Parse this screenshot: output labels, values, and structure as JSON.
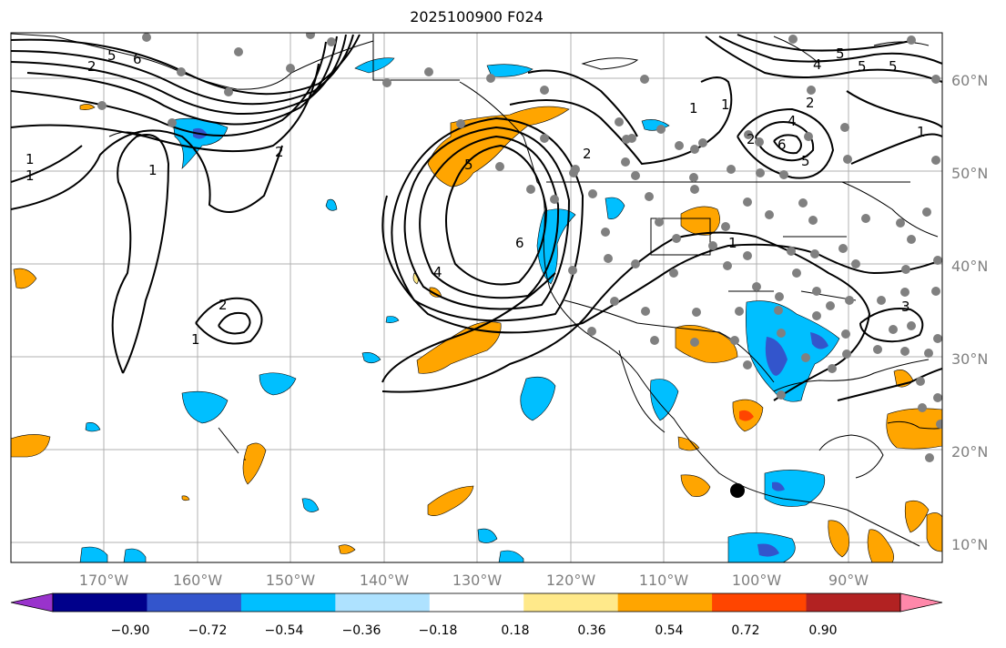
{
  "title": "2025100900 F024",
  "map": {
    "lon_labels": [
      "170°W",
      "160°W",
      "150°W",
      "140°W",
      "130°W",
      "120°W",
      "110°W",
      "100°W",
      "90°W"
    ],
    "lat_labels": [
      "60°N",
      "50°N",
      "40°N",
      "30°N",
      "20°N",
      "10°N"
    ],
    "contour_labels": [
      "5",
      "6",
      "2",
      "1",
      "1",
      "2",
      "1",
      "2",
      "2",
      "1",
      "2",
      "1",
      "1",
      "4",
      "5",
      "6",
      "5",
      "4",
      "5",
      "5",
      "6",
      "4",
      "5",
      "1",
      "3",
      "2",
      "1"
    ],
    "colors": {
      "contour": "#000000",
      "gridline": "#b0b0b0",
      "station_dot": "#808080",
      "highlight_dot": "#000000"
    }
  },
  "colorbar": {
    "tick_labels": [
      "−0.90",
      "−0.72",
      "−0.54",
      "−0.36",
      "−0.18",
      "0.18",
      "0.36",
      "0.54",
      "0.72",
      "0.90"
    ],
    "bin_colors": [
      "#9933cc",
      "#00008b",
      "#3355cc",
      "#00bfff",
      "#aee2ff",
      "#ffffff",
      "#ffe98a",
      "#ffa500",
      "#ff4500",
      "#b22222",
      "#ff88aa"
    ]
  }
}
